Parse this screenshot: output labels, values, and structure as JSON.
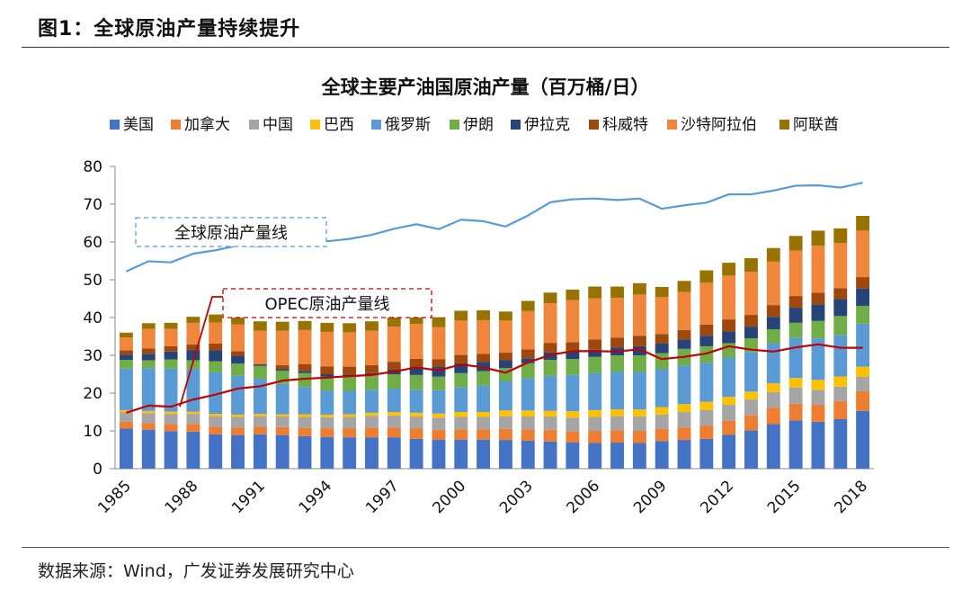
{
  "figure": {
    "label": "图1：全球原油产量持续提升",
    "source": "数据来源：Wind，广发证券发展研究中心"
  },
  "chart_data": {
    "type": "bar",
    "stacked": true,
    "title": "全球主要产油国原油产量（百万桶/日）",
    "ylim": [
      0,
      80
    ],
    "yticks": [
      0,
      10,
      20,
      30,
      40,
      50,
      60,
      70,
      80
    ],
    "legend_position": "top",
    "years": [
      1985,
      1986,
      1987,
      1988,
      1989,
      1990,
      1991,
      1992,
      1993,
      1994,
      1995,
      1996,
      1997,
      1998,
      1999,
      2000,
      2001,
      2002,
      2003,
      2004,
      2005,
      2006,
      2007,
      2008,
      2009,
      2010,
      2011,
      2012,
      2013,
      2014,
      2015,
      2016,
      2017,
      2018
    ],
    "xtick_labels": [
      "1985",
      "1988",
      "1991",
      "1994",
      "1997",
      "2000",
      "2003",
      "2006",
      "2009",
      "2012",
      "2015",
      "2018"
    ],
    "series": [
      {
        "name": "美国",
        "color": "#4472c4",
        "values": [
          10.6,
          10.3,
          9.9,
          9.8,
          9.1,
          8.9,
          9.1,
          8.9,
          8.6,
          8.4,
          8.3,
          8.3,
          8.3,
          7.9,
          7.7,
          7.7,
          7.7,
          7.6,
          7.4,
          7.2,
          6.9,
          6.8,
          6.9,
          6.8,
          7.3,
          7.6,
          7.9,
          9.0,
          10.1,
          11.8,
          12.8,
          12.4,
          13.1,
          15.3
        ]
      },
      {
        "name": "加拿大",
        "color": "#ed7d31",
        "values": [
          1.8,
          1.8,
          1.9,
          2.0,
          2.0,
          2.0,
          2.0,
          2.1,
          2.2,
          2.3,
          2.4,
          2.5,
          2.6,
          2.7,
          2.6,
          2.7,
          2.7,
          2.9,
          3.0,
          3.1,
          3.0,
          3.2,
          3.3,
          3.2,
          3.2,
          3.3,
          3.5,
          3.7,
          4.0,
          4.3,
          4.4,
          4.5,
          4.8,
          5.2
        ]
      },
      {
        "name": "中国",
        "color": "#a5a5a5",
        "values": [
          2.5,
          2.6,
          2.7,
          2.7,
          2.8,
          2.8,
          2.8,
          2.8,
          2.9,
          2.9,
          3.0,
          3.2,
          3.2,
          3.2,
          3.2,
          3.3,
          3.3,
          3.4,
          3.4,
          3.5,
          3.6,
          3.7,
          3.7,
          3.8,
          3.8,
          4.1,
          4.1,
          4.2,
          4.2,
          4.2,
          4.3,
          4.0,
          3.8,
          3.8
        ]
      },
      {
        "name": "巴西",
        "color": "#ffc000",
        "values": [
          0.6,
          0.6,
          0.6,
          0.6,
          0.6,
          0.6,
          0.6,
          0.6,
          0.7,
          0.7,
          0.7,
          0.8,
          0.9,
          1.0,
          1.1,
          1.3,
          1.3,
          1.5,
          1.6,
          1.5,
          1.7,
          1.8,
          1.8,
          1.9,
          2.0,
          2.1,
          2.2,
          2.1,
          2.1,
          2.3,
          2.5,
          2.6,
          2.7,
          2.7
        ]
      },
      {
        "name": "俄罗斯",
        "color": "#5b9bd5",
        "values": [
          11.0,
          11.3,
          11.4,
          11.3,
          11.0,
          10.3,
          9.3,
          8.0,
          7.2,
          6.4,
          6.2,
          6.1,
          6.2,
          6.1,
          6.2,
          6.5,
          7.0,
          7.7,
          8.5,
          9.3,
          9.6,
          9.8,
          10.0,
          9.9,
          10.0,
          10.2,
          10.3,
          10.4,
          10.5,
          10.6,
          10.7,
          11.0,
          11.0,
          11.4
        ]
      },
      {
        "name": "伊朗",
        "color": "#70ad47",
        "values": [
          2.3,
          2.1,
          2.4,
          2.3,
          2.9,
          3.2,
          3.4,
          3.5,
          3.7,
          3.7,
          3.7,
          3.8,
          3.8,
          3.9,
          3.6,
          3.8,
          3.8,
          3.5,
          4.0,
          4.2,
          4.2,
          4.3,
          4.3,
          4.4,
          4.3,
          4.4,
          4.4,
          3.8,
          3.6,
          3.7,
          3.9,
          4.6,
          5.0,
          4.7
        ]
      },
      {
        "name": "伊拉克",
        "color": "#264478",
        "values": [
          1.4,
          1.7,
          2.1,
          2.7,
          2.9,
          2.1,
          0.3,
          0.4,
          0.5,
          0.6,
          0.6,
          0.6,
          1.2,
          2.2,
          2.6,
          2.6,
          2.5,
          2.1,
          1.3,
          2.0,
          1.9,
          1.9,
          2.1,
          2.4,
          2.5,
          2.5,
          2.8,
          3.1,
          3.1,
          3.3,
          4.0,
          4.4,
          4.5,
          4.6
        ]
      },
      {
        "name": "科威特",
        "color": "#9e480e",
        "values": [
          1.1,
          1.4,
          1.4,
          1.5,
          1.8,
          1.2,
          0.2,
          1.1,
          1.9,
          2.1,
          2.1,
          2.1,
          2.1,
          2.1,
          2.0,
          2.2,
          2.1,
          2.0,
          2.4,
          2.5,
          2.6,
          2.7,
          2.6,
          2.8,
          2.5,
          2.5,
          2.9,
          3.2,
          3.1,
          3.1,
          3.1,
          3.1,
          2.9,
          3.0
        ]
      },
      {
        "name": "沙特阿拉伯",
        "color": "#f0863c",
        "values": [
          3.4,
          5.2,
          4.6,
          5.7,
          5.6,
          7.1,
          8.8,
          9.1,
          9.0,
          9.1,
          9.1,
          9.1,
          9.3,
          9.2,
          8.5,
          9.1,
          8.9,
          8.5,
          10.1,
          10.5,
          11.1,
          10.9,
          10.5,
          10.9,
          9.8,
          10.1,
          11.1,
          11.6,
          11.4,
          11.5,
          12.0,
          12.4,
          11.9,
          12.3
        ]
      },
      {
        "name": "阿联酋",
        "color": "#997300",
        "values": [
          1.3,
          1.5,
          1.6,
          1.6,
          2.1,
          2.3,
          2.5,
          2.4,
          2.4,
          2.4,
          2.4,
          2.5,
          2.6,
          2.7,
          2.6,
          2.6,
          2.6,
          2.4,
          2.7,
          2.8,
          2.8,
          3.1,
          3.0,
          3.0,
          2.7,
          2.9,
          3.3,
          3.4,
          3.6,
          3.6,
          3.9,
          4.0,
          3.9,
          3.9
        ]
      }
    ],
    "lines": [
      {
        "name": "全球原油产量线",
        "color": "#5b9bd5",
        "values": [
          52.2,
          54.9,
          54.6,
          56.9,
          57.8,
          59.1,
          58.9,
          59.1,
          59.3,
          60.2,
          60.8,
          61.9,
          63.5,
          64.7,
          63.4,
          65.9,
          65.5,
          64.1,
          67.0,
          70.5,
          71.3,
          71.5,
          71.1,
          71.5,
          68.8,
          69.7,
          70.4,
          72.6,
          72.6,
          73.6,
          74.9,
          75.0,
          74.4,
          75.7
        ]
      },
      {
        "name": "OPEC原油产量线",
        "color": "#c00000",
        "values": [
          14.8,
          16.7,
          16.4,
          18.3,
          19.6,
          21.2,
          21.8,
          23.3,
          23.8,
          24.1,
          24.5,
          24.8,
          25.7,
          26.8,
          26.0,
          27.6,
          26.8,
          25.4,
          28.1,
          30.1,
          31.1,
          31.1,
          31.0,
          31.6,
          29.0,
          29.6,
          30.5,
          32.4,
          31.5,
          31.0,
          32.1,
          32.9,
          32.0,
          32.0
        ]
      }
    ],
    "annotations": [
      {
        "text": "全球原油产量线",
        "style": "dashed-box",
        "color": "#5b9bd5"
      },
      {
        "text": "OPEC原油产量线",
        "style": "dashed-box",
        "color": "#c00000"
      }
    ]
  }
}
